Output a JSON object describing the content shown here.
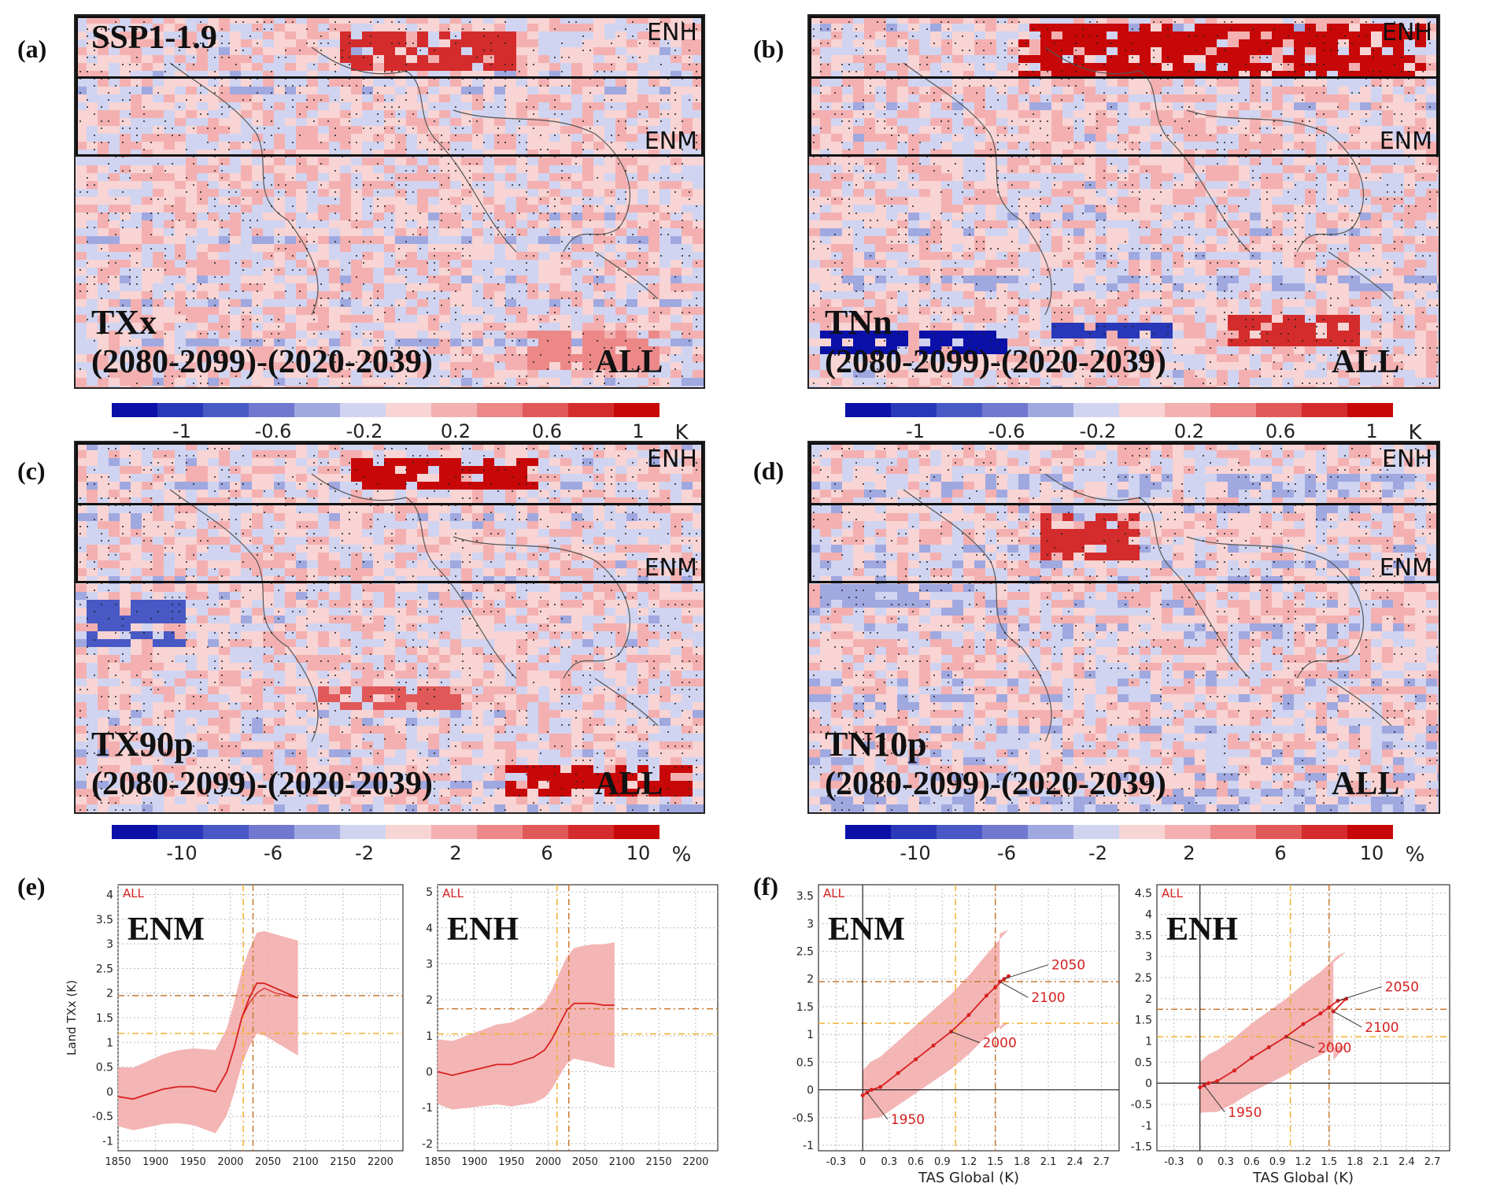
{
  "panels": {
    "a": {
      "label": "(a)",
      "scenario": "SSP1-1.9",
      "index": "TXx",
      "period": "(2080-2099)-(2020-2039)",
      "set": "ALL",
      "zone_top": "ENH",
      "zone_mid": "ENM",
      "cmap": "K"
    },
    "b": {
      "label": "(b)",
      "index": "TNn",
      "period": "(2080-2099)-(2020-2039)",
      "set": "ALL",
      "zone_top": "ENH",
      "zone_mid": "ENM",
      "cmap": "K"
    },
    "c": {
      "label": "(c)",
      "index": "TX90p",
      "period": "(2080-2099)-(2020-2039)",
      "set": "ALL",
      "zone_top": "ENH",
      "zone_mid": "ENM",
      "cmap": "%"
    },
    "d": {
      "label": "(d)",
      "index": "TN10p",
      "period": "(2080-2099)-(2020-2039)",
      "set": "ALL",
      "zone_top": "ENH",
      "zone_mid": "ENM",
      "cmap": "%"
    },
    "e": {
      "label": "(e)"
    },
    "f": {
      "label": "(f)"
    }
  },
  "colorbars": {
    "k": {
      "ticks": [
        "-1",
        "-0.6",
        "-0.2",
        "0.2",
        "0.6",
        "1"
      ],
      "unit": "K"
    },
    "pct": {
      "ticks": [
        "-10",
        "-6",
        "-2",
        "2",
        "6",
        "10"
      ],
      "unit": "%"
    },
    "colors": [
      "#0a10a8",
      "#2838b8",
      "#4858c4",
      "#7078d0",
      "#a0a8e0",
      "#d0d4f0",
      "#f8d4d4",
      "#f4b0b0",
      "#ec8888",
      "#e05858",
      "#d42c2c",
      "#c80808"
    ]
  },
  "chart_data": [
    {
      "type": "line",
      "panel": "e-ENM",
      "tag": "ALL",
      "title": "ENM",
      "ylabel": "Land TXx (K)",
      "xlim": [
        1850,
        2230
      ],
      "ylim": [
        -1.2,
        4.2
      ],
      "xticks": [
        "1850",
        "1900",
        "1950",
        "2000",
        "2050",
        "2100",
        "2150",
        "2200"
      ],
      "yticks": [
        "-1",
        "-0.5",
        "0",
        "0.5",
        "1",
        "1.5",
        "2",
        "2.5",
        "3",
        "3.5",
        "4"
      ],
      "series": [
        {
          "x": [
            1850,
            1870,
            1890,
            1910,
            1930,
            1950,
            1965,
            1980,
            1995,
            2005,
            2015,
            2025,
            2035,
            2045,
            2060,
            2075,
            2090
          ],
          "values": [
            -0.1,
            -0.15,
            -0.05,
            0.05,
            0.1,
            0.1,
            0.05,
            0.0,
            0.4,
            0.9,
            1.5,
            1.9,
            2.2,
            2.2,
            2.1,
            2.0,
            1.9
          ]
        },
        {
          "x": [
            1850,
            1870,
            1890,
            1910,
            1930,
            1950,
            1965,
            1980,
            1995,
            2005,
            2015,
            2025,
            2035,
            2045,
            2060,
            2075,
            2090
          ],
          "values": [
            -0.1,
            -0.15,
            -0.05,
            0.05,
            0.1,
            0.1,
            0.05,
            0.0,
            0.4,
            0.9,
            1.5,
            1.8,
            2.0,
            2.1,
            2.0,
            1.95,
            1.9
          ]
        }
      ],
      "hlines": [
        1.95,
        1.18
      ],
      "vlines": [
        2017,
        2030
      ]
    },
    {
      "type": "line",
      "panel": "e-ENH",
      "tag": "ALL",
      "title": "ENH",
      "xlim": [
        1850,
        2230
      ],
      "ylim": [
        -2.2,
        5.2
      ],
      "xticks": [
        "1850",
        "1900",
        "1950",
        "2000",
        "2050",
        "2100",
        "2150",
        "2200"
      ],
      "yticks": [
        "-2",
        "-1",
        "0",
        "1",
        "2",
        "3",
        "4",
        "5"
      ],
      "series": [
        {
          "x": [
            1850,
            1870,
            1890,
            1910,
            1930,
            1950,
            1965,
            1980,
            1995,
            2005,
            2015,
            2025,
            2035,
            2045,
            2060,
            2075,
            2090
          ],
          "values": [
            0.0,
            -0.1,
            0.0,
            0.1,
            0.2,
            0.2,
            0.3,
            0.4,
            0.6,
            0.9,
            1.3,
            1.7,
            1.9,
            1.9,
            1.9,
            1.85,
            1.85
          ]
        }
      ],
      "hlines": [
        1.75,
        1.05
      ],
      "vlines": [
        2012,
        2028
      ]
    },
    {
      "type": "scatter",
      "panel": "f-ENM",
      "tag": "ALL",
      "title": "ENM",
      "xlabel": "TAS Global (K)",
      "xlim": [
        -0.5,
        2.9
      ],
      "ylim": [
        -1.1,
        3.7
      ],
      "xticks": [
        "-0.3",
        "0",
        "0.3",
        "0.6",
        "0.9",
        "1.2",
        "1.5",
        "1.8",
        "2.1",
        "2.4",
        "2.7"
      ],
      "yticks": [
        "-1",
        "-0.5",
        "0",
        "0.5",
        "1",
        "1.5",
        "2",
        "2.5",
        "3",
        "3.5"
      ],
      "series": [
        {
          "x": [
            0.0,
            0.05,
            0.1,
            0.2,
            0.4,
            0.6,
            0.8,
            1.0,
            1.2,
            1.4,
            1.5,
            1.6,
            1.65,
            1.55
          ],
          "values": [
            -0.1,
            -0.05,
            0.0,
            0.05,
            0.3,
            0.55,
            0.8,
            1.05,
            1.35,
            1.7,
            1.85,
            2.0,
            2.05,
            1.95
          ]
        }
      ],
      "annotations": [
        "1950",
        "2000",
        "2050",
        "2100"
      ],
      "hlines": [
        1.95,
        1.2
      ],
      "vlines": [
        1.05,
        1.5
      ]
    },
    {
      "type": "scatter",
      "panel": "f-ENH",
      "tag": "ALL",
      "title": "ENH",
      "xlabel": "TAS Global (K)",
      "xlim": [
        -0.5,
        2.9
      ],
      "ylim": [
        -1.6,
        4.7
      ],
      "xticks": [
        "-0.3",
        "0",
        "0.3",
        "0.6",
        "0.9",
        "1.2",
        "1.5",
        "1.8",
        "2.1",
        "2.4",
        "2.7"
      ],
      "yticks": [
        "-1.5",
        "-1",
        "-0.5",
        "0",
        "0.5",
        "1",
        "1.5",
        "2",
        "2.5",
        "3",
        "3.5",
        "4",
        "4.5"
      ],
      "series": [
        {
          "x": [
            0.0,
            0.05,
            0.1,
            0.2,
            0.4,
            0.6,
            0.8,
            1.0,
            1.2,
            1.4,
            1.5,
            1.6,
            1.7,
            1.55
          ],
          "values": [
            -0.1,
            -0.05,
            0.0,
            0.05,
            0.3,
            0.6,
            0.85,
            1.1,
            1.4,
            1.65,
            1.8,
            1.95,
            2.0,
            1.7
          ]
        }
      ],
      "annotations": [
        "1950",
        "2000",
        "2050",
        "2100"
      ],
      "hlines": [
        1.75,
        1.1
      ],
      "vlines": [
        1.05,
        1.5
      ]
    }
  ]
}
